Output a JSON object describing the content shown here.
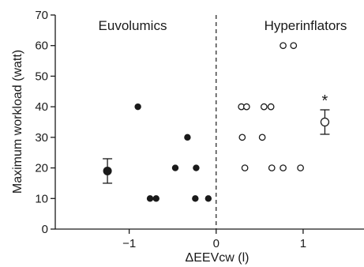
{
  "chart_data": {
    "type": "scatter",
    "title": "",
    "xlabel": "ΔEEVcw (l)",
    "ylabel": "Maximum workload (watt)",
    "xlim": [
      -1.85,
      1.7
    ],
    "ylim": [
      0,
      70
    ],
    "x_ticks": [
      -1,
      0,
      1
    ],
    "x_tick_labels": [
      "−1",
      "0",
      "1"
    ],
    "y_ticks": [
      0,
      10,
      20,
      30,
      40,
      50,
      60,
      70
    ],
    "y_tick_labels": [
      "0",
      "10",
      "20",
      "30",
      "40",
      "50",
      "60",
      "70"
    ],
    "grid": false,
    "divider_x": 0,
    "group_labels": [
      "Euvolumics",
      "Hyperinflators"
    ],
    "series": [
      {
        "name": "Euvolumics",
        "marker": "filled-circle",
        "points": [
          {
            "x": -0.9,
            "y": 40
          },
          {
            "x": -0.33,
            "y": 30
          },
          {
            "x": -0.47,
            "y": 20
          },
          {
            "x": -0.23,
            "y": 20
          },
          {
            "x": -0.76,
            "y": 10
          },
          {
            "x": -0.69,
            "y": 10
          },
          {
            "x": -0.24,
            "y": 10
          },
          {
            "x": -0.09,
            "y": 10
          }
        ]
      },
      {
        "name": "Hyperinflators",
        "marker": "open-circle",
        "points": [
          {
            "x": 0.77,
            "y": 60
          },
          {
            "x": 0.89,
            "y": 60
          },
          {
            "x": 0.29,
            "y": 40
          },
          {
            "x": 0.35,
            "y": 40
          },
          {
            "x": 0.55,
            "y": 40
          },
          {
            "x": 0.63,
            "y": 40
          },
          {
            "x": 0.3,
            "y": 30
          },
          {
            "x": 0.53,
            "y": 30
          },
          {
            "x": 0.33,
            "y": 20
          },
          {
            "x": 0.64,
            "y": 20
          },
          {
            "x": 0.77,
            "y": 20
          },
          {
            "x": 0.97,
            "y": 20
          }
        ]
      }
    ],
    "means": [
      {
        "group": "Euvolumics",
        "marker": "filled-circle",
        "x": -1.25,
        "y": 19,
        "err_low": 15,
        "err_high": 23
      },
      {
        "group": "Hyperinflators",
        "marker": "open-circle",
        "x": 1.25,
        "y": 35,
        "err_low": 31,
        "err_high": 39,
        "annotation": "*"
      }
    ]
  },
  "colors": {
    "ink": "#1a1a1a",
    "background": "#ffffff"
  }
}
